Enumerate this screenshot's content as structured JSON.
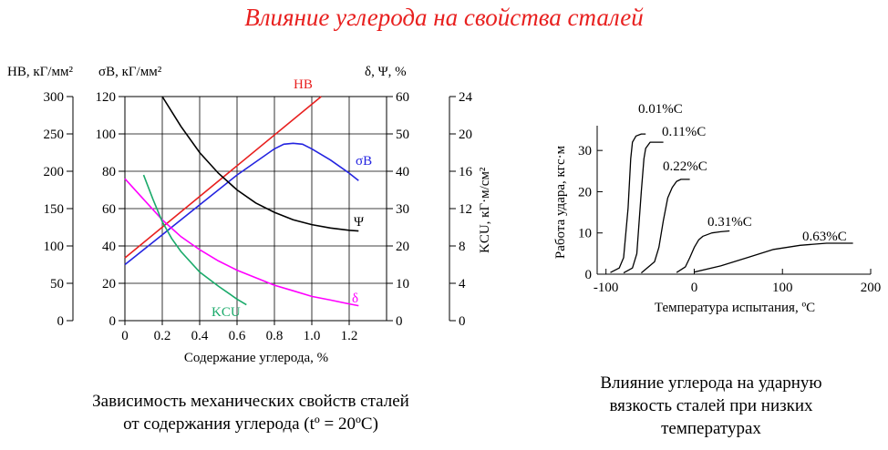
{
  "title": "Влияние углерода на свойства сталей",
  "caption_left_1": "Зависимость механических свойств сталей",
  "caption_left_2": "от содержания углерода (tº = 20ºC)",
  "caption_right_1": "Влияние углерода на ударную",
  "caption_right_2": "вязкость сталей при низких",
  "caption_right_3": "температурах",
  "colors": {
    "title": "#e8201f",
    "HB": "#e8201f",
    "sigma": "#2424e0",
    "psi": "#000000",
    "delta": "#ff00ff",
    "KCU": "#1aaa6a"
  },
  "chart_data": [
    {
      "type": "line",
      "xlabel": "Содержание углерода, %",
      "xlim": [
        0,
        1.4
      ],
      "x_ticks": [
        "0",
        "0.2",
        "0.4",
        "0.6",
        "0.8",
        "1.0",
        "1.2"
      ],
      "axes": {
        "HB": {
          "label": "HB, кГ/мм²",
          "ticks": [
            "300",
            "250",
            "200",
            "150",
            "100",
            "50",
            "0"
          ],
          "range": [
            0,
            300
          ]
        },
        "sigma": {
          "label": "σВ, кГ/мм²",
          "ticks": [
            "120",
            "100",
            "80",
            "60",
            "40",
            "20",
            "0"
          ],
          "range": [
            0,
            120
          ]
        },
        "delta_psi": {
          "label": "δ, Ψ, %",
          "ticks": [
            "60",
            "50",
            "40",
            "30",
            "20",
            "10",
            "0"
          ],
          "range": [
            0,
            60
          ]
        },
        "KCU": {
          "label": "KCU, кГ·м/см²",
          "ticks": [
            "24",
            "20",
            "16",
            "12",
            "8",
            "4",
            "0"
          ],
          "range": [
            0,
            24
          ]
        }
      },
      "series": [
        {
          "name": "HB",
          "axis": "HB",
          "x": [
            0,
            1.05
          ],
          "y": [
            84,
            300
          ]
        },
        {
          "name": "σВ",
          "axis": "sigma",
          "x": [
            0,
            0.2,
            0.4,
            0.6,
            0.8,
            0.85,
            0.9,
            0.95,
            1.0,
            1.1,
            1.2,
            1.25
          ],
          "y": [
            30,
            46,
            62,
            78,
            92,
            94.5,
            95,
            94.5,
            92,
            86,
            79,
            75
          ]
        },
        {
          "name": "Ψ",
          "axis": "delta_psi",
          "x": [
            0.2,
            0.3,
            0.4,
            0.5,
            0.6,
            0.7,
            0.8,
            0.9,
            1.0,
            1.1,
            1.2,
            1.25
          ],
          "y": [
            60,
            52,
            45,
            39.5,
            35,
            31.5,
            29,
            27,
            25.7,
            24.8,
            24.2,
            24
          ]
        },
        {
          "name": "δ",
          "axis": "delta_psi",
          "x": [
            0,
            0.1,
            0.2,
            0.3,
            0.4,
            0.5,
            0.6,
            0.7,
            0.8,
            0.9,
            1.0,
            1.1,
            1.2,
            1.25
          ],
          "y": [
            38,
            32.5,
            27,
            22.5,
            19,
            16,
            13.5,
            11.5,
            9.5,
            8,
            6.5,
            5.5,
            4.5,
            4
          ]
        },
        {
          "name": "KCU",
          "axis": "KCU",
          "x": [
            0.1,
            0.15,
            0.2,
            0.25,
            0.3,
            0.4,
            0.5,
            0.6,
            0.65
          ],
          "y": [
            15.6,
            13,
            10.6,
            8.8,
            7.4,
            5.2,
            3.7,
            2.3,
            1.7
          ]
        }
      ]
    },
    {
      "type": "line",
      "xlabel": "Температура испытания, ºC",
      "ylabel": "Работа удара, кгс·м",
      "xlim": [
        -110,
        200
      ],
      "ylim": [
        0,
        36
      ],
      "x_ticks": [
        "-100",
        "0",
        "100",
        "200"
      ],
      "y_ticks": [
        "0",
        "10",
        "20",
        "30"
      ],
      "series": [
        {
          "name": "0.01%C",
          "x": [
            -95,
            -85,
            -80,
            -75,
            -72,
            -70,
            -66,
            -60,
            -55
          ],
          "y": [
            0.4,
            1.5,
            4,
            16,
            28,
            32,
            33.5,
            34,
            34
          ]
        },
        {
          "name": "0.11%C",
          "x": [
            -80,
            -70,
            -65,
            -60,
            -57,
            -55,
            -50,
            -45,
            -35
          ],
          "y": [
            0.3,
            1.5,
            5,
            20,
            28,
            30.5,
            32,
            32,
            32
          ]
        },
        {
          "name": "0.22%C",
          "x": [
            -60,
            -45,
            -40,
            -35,
            -30,
            -25,
            -20,
            -15,
            -5
          ],
          "y": [
            0.3,
            3,
            6.5,
            13,
            18.5,
            21,
            22.5,
            23,
            23
          ]
        },
        {
          "name": "0.31%C",
          "x": [
            -20,
            -10,
            -5,
            0,
            5,
            10,
            20,
            30,
            40
          ],
          "y": [
            0.4,
            1.8,
            4,
            6.5,
            8.3,
            9.2,
            10,
            10.3,
            10.5
          ]
        },
        {
          "name": "0.63%C",
          "x": [
            0,
            30,
            60,
            90,
            120,
            150,
            180
          ],
          "y": [
            0.5,
            2,
            4,
            6,
            7,
            7.5,
            7.5
          ]
        }
      ]
    }
  ]
}
